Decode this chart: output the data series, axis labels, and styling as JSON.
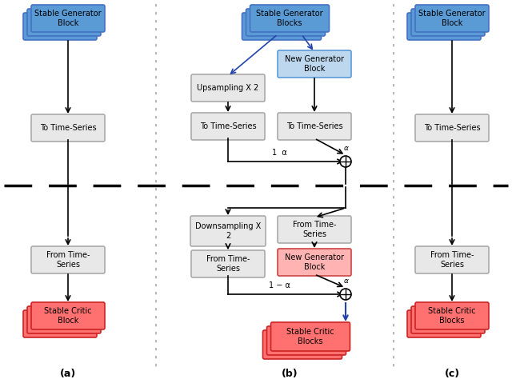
{
  "bg_color": "#ffffff",
  "box_gray_fill": "#e8e8e8",
  "box_gray_edge": "#aaaaaa",
  "box_blue_fill": "#5b9bd5",
  "box_blue_edge": "#2e5fa3",
  "box_blue_dark_fill": "#4472c4",
  "box_lightblue_fill": "#bdd7ee",
  "box_lightblue_edge": "#5b9bd5",
  "box_red_fill": "#ff7070",
  "box_red_edge": "#cc2222",
  "box_pink_fill": "#ffb3b3",
  "box_pink_edge": "#cc4444",
  "label_a": "(a)",
  "label_b": "(b)",
  "label_c": "(c)"
}
